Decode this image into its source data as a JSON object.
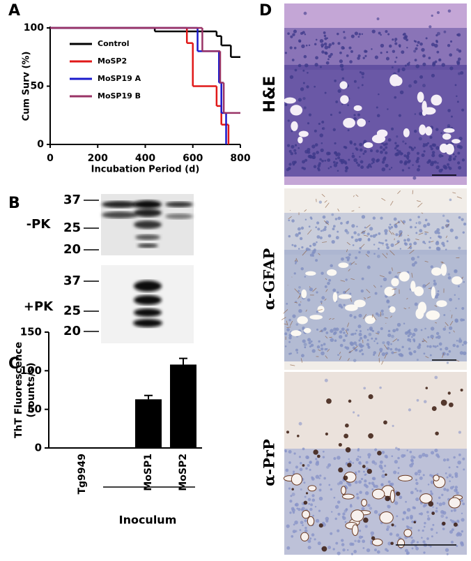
{
  "panels": [
    "A",
    "B",
    "C",
    "D"
  ],
  "chart_data": [
    {
      "type": "step",
      "xlabel": "Incubation Period (d)",
      "ylabel": "Cum Surv (%)",
      "xlim": [
        0,
        800
      ],
      "xticks": [
        0,
        200,
        400,
        600,
        800
      ],
      "ylim": [
        0,
        100
      ],
      "yticks": [
        0,
        50,
        100
      ],
      "series": [
        {
          "name": "Control",
          "color": "#000000",
          "x": [
            0,
            440,
            700,
            720,
            760
          ],
          "values": [
            100,
            97,
            93,
            85,
            75
          ]
        },
        {
          "name": "MoSP2",
          "color": "#e01818",
          "x": [
            0,
            575,
            600,
            700,
            720,
            750
          ],
          "values": [
            100,
            87,
            50,
            33,
            17,
            0
          ]
        },
        {
          "name": "MoSP19 A",
          "color": "#1a1acc",
          "x": [
            0,
            620,
            710,
            720,
            740
          ],
          "values": [
            100,
            80,
            53,
            27,
            0
          ]
        },
        {
          "name": "MoSP19 B",
          "color": "#993366",
          "x": [
            0,
            640,
            715,
            730
          ],
          "values": [
            100,
            80,
            53,
            27
          ]
        }
      ]
    },
    {
      "type": "bar",
      "ylabel": [
        "ThT Fluorescence",
        "(counts/s)"
      ],
      "xlabel": "Inoculum",
      "categories": [
        "Tg9949",
        "MoSP1",
        "MoSP2"
      ],
      "values": [
        0.5,
        63,
        108
      ],
      "errors": [
        0,
        5,
        8
      ],
      "color": "#000000",
      "ylim": [
        0,
        150
      ],
      "yticks": [
        0,
        50,
        100,
        150
      ]
    }
  ],
  "blots": [
    {
      "label": "-PK",
      "markers": [
        37,
        25,
        20
      ]
    },
    {
      "label": "+PK",
      "markers": [
        37,
        25,
        20
      ]
    }
  ],
  "stains": [
    "H&E",
    "α-GFAP",
    "α-PrP"
  ]
}
